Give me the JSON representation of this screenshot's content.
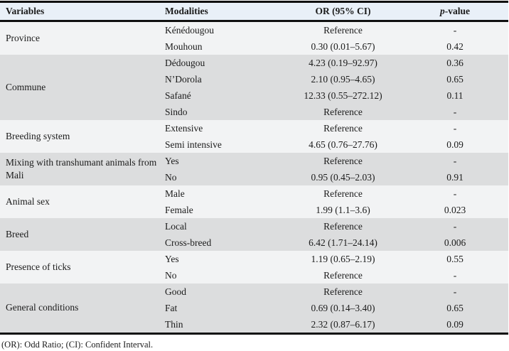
{
  "colors": {
    "page_bg": "#ffffff",
    "header_bg": "#e9f0f8",
    "row_light": "#f2f3f4",
    "row_dark": "#dcddde",
    "border": "#101010",
    "text": "#1b1b1b"
  },
  "table": {
    "columns": {
      "variables": "Variables",
      "modalities": "Modalities",
      "or_ci": "OR (95% CI)",
      "p_italic": "p",
      "p_rest": "-value"
    },
    "groups": [
      {
        "variable": "Province",
        "rows": [
          {
            "modality": "Kénédougou",
            "or": "Reference",
            "p": "-"
          },
          {
            "modality": "Mouhoun",
            "or": "0.30 (0.01–5.67)",
            "p": "0.42"
          }
        ]
      },
      {
        "variable": "Commune",
        "rows": [
          {
            "modality": "Dédougou",
            "or": "4.23 (0.19–92.97)",
            "p": "0.36"
          },
          {
            "modality": "N’Dorola",
            "or": "2.10 (0.95–4.65)",
            "p": "0.65"
          },
          {
            "modality": "Safané",
            "or": "12.33 (0.55–272.12)",
            "p": "0.11"
          },
          {
            "modality": "Sindo",
            "or": "Reference",
            "p": "-"
          }
        ]
      },
      {
        "variable": "Breeding system",
        "rows": [
          {
            "modality": "Extensive",
            "or": "Reference",
            "p": "-"
          },
          {
            "modality": "Semi intensive",
            "or": "4.65 (0.76–27.76)",
            "p": "0.09"
          }
        ]
      },
      {
        "variable": "Mixing with transhumant animals from Mali",
        "rows": [
          {
            "modality": "Yes",
            "or": "Reference",
            "p": "-"
          },
          {
            "modality": "No",
            "or": "0.95 (0.45–2.03)",
            "p": "0.91"
          }
        ]
      },
      {
        "variable": "Animal sex",
        "rows": [
          {
            "modality": "Male",
            "or": "Reference",
            "p": "-"
          },
          {
            "modality": "Female",
            "or": "1.99 (1.1–3.6)",
            "p": "0.023"
          }
        ]
      },
      {
        "variable": "Breed",
        "rows": [
          {
            "modality": "Local",
            "or": "Reference",
            "p": "-"
          },
          {
            "modality": "Cross-breed",
            "or": "6.42 (1.71–24.14)",
            "p": "0.006"
          }
        ]
      },
      {
        "variable": "Presence of ticks",
        "rows": [
          {
            "modality": "Yes",
            "or": "1.19 (0.65–2.19)",
            "p": "0.55"
          },
          {
            "modality": "No",
            "or": "Reference",
            "p": "-"
          }
        ]
      },
      {
        "variable": "General conditions",
        "rows": [
          {
            "modality": "Good",
            "or": "Reference",
            "p": "-"
          },
          {
            "modality": "Fat",
            "or": "0.69 (0.14–3.40)",
            "p": "0.65"
          },
          {
            "modality": "Thin",
            "or": "2.32 (0.87–6.17)",
            "p": "0.09"
          }
        ]
      }
    ],
    "footnote": "(OR): Odd Ratio; (CI): Confident Interval."
  }
}
